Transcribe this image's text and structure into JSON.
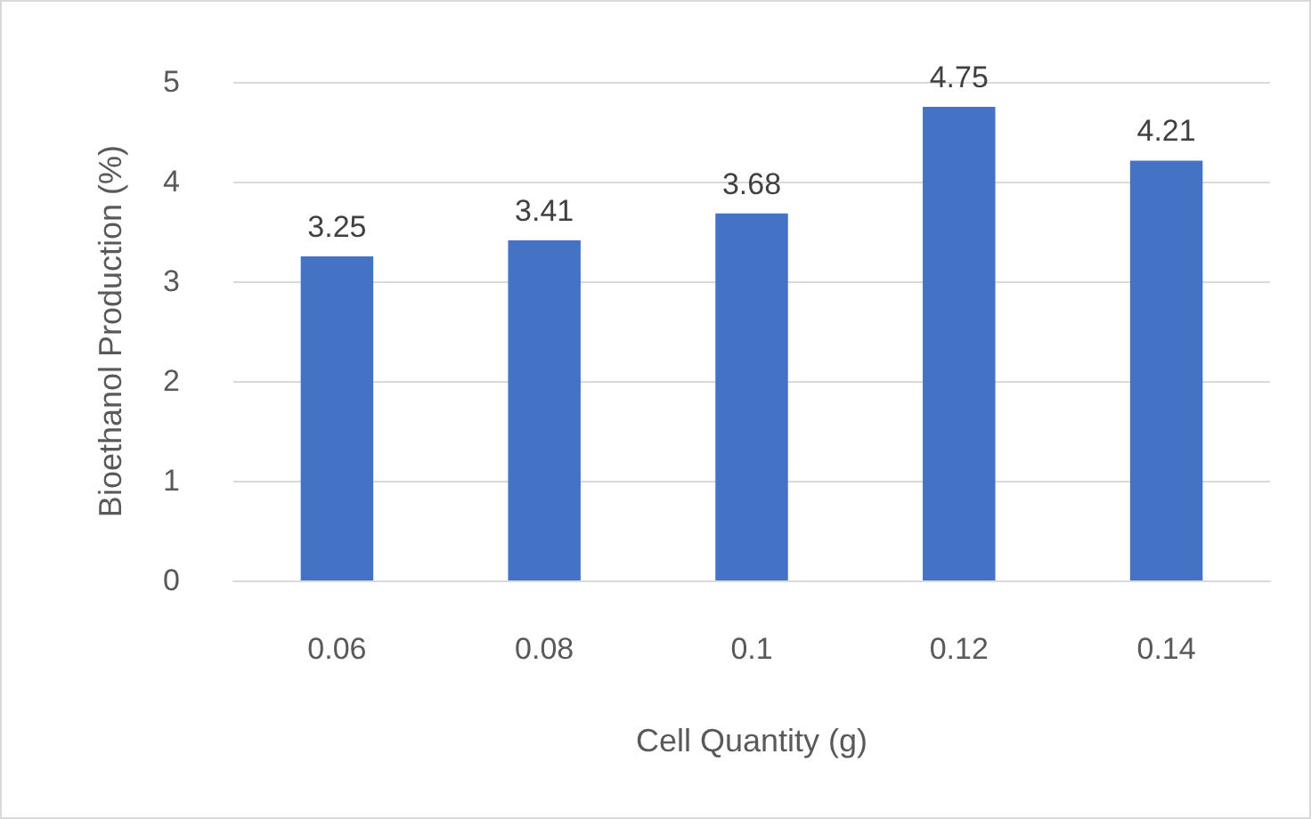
{
  "chart_data": {
    "type": "bar",
    "xlabel": "Cell Quantity (g)",
    "ylabel": "Bioethanol Production (%)",
    "categories": [
      "0.06",
      "0.08",
      "0.1",
      "0.12",
      "0.14"
    ],
    "values": [
      3.25,
      3.41,
      3.68,
      4.75,
      4.21
    ],
    "color": "#4472c4",
    "ylim": [
      0,
      5
    ],
    "yticks": [
      0,
      1,
      2,
      3,
      4,
      5
    ],
    "grid": "y",
    "data_labels": true
  }
}
